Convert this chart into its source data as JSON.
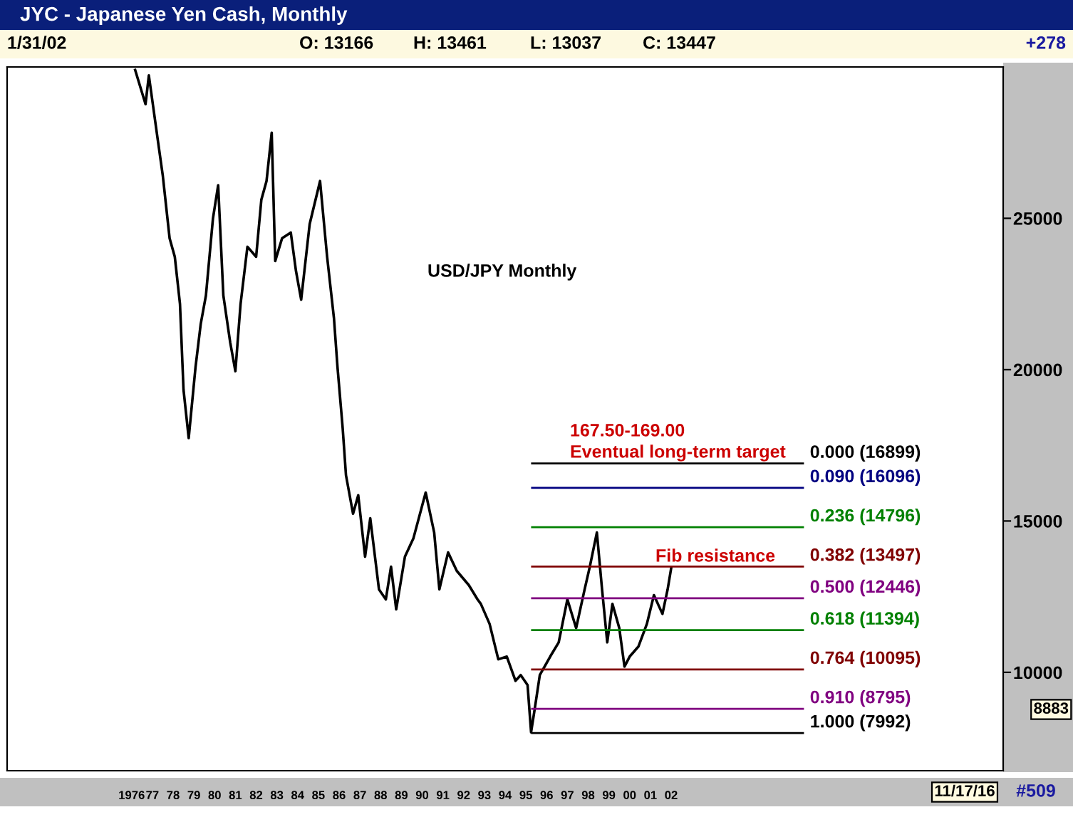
{
  "chart_data": {
    "type": "line",
    "title": "JYC - Japanese Yen Cash, Monthly",
    "x": [
      1976.17,
      1976.67,
      1976.83,
      1977.25,
      1977.5,
      1977.83,
      1978.08,
      1978.33,
      1978.5,
      1978.75,
      1979.08,
      1979.33,
      1979.58,
      1979.92,
      1980.17,
      1980.42,
      1980.75,
      1981.0,
      1981.25,
      1981.58,
      1982.0,
      1982.25,
      1982.5,
      1982.75,
      1982.92,
      1983.25,
      1983.67,
      1983.92,
      1984.17,
      1984.58,
      1985.08,
      1985.42,
      1985.75,
      1985.92,
      1986.17,
      1986.33,
      1986.67,
      1986.92,
      1987.25,
      1987.5,
      1987.92,
      1988.25,
      1988.5,
      1988.75,
      1989.17,
      1989.58,
      1990.17,
      1990.58,
      1990.83,
      1991.25,
      1991.67,
      1992.25,
      1992.67,
      1992.83,
      1993.25,
      1993.67,
      1994.08,
      1994.5,
      1994.75,
      1995.08,
      1995.25,
      1995.42,
      1995.67,
      1996.17,
      1996.58,
      1997.0,
      1997.42,
      1997.83,
      1998.08,
      1998.42,
      1998.67,
      1998.92,
      1999.17,
      1999.5,
      1999.75,
      2000.0,
      2000.42,
      2000.83,
      2001.17,
      2001.58,
      2001.83,
      2002.0
    ],
    "series": [
      {
        "color": "#000000",
        "values": [
          29900,
          28770,
          29720,
          27640,
          26420,
          24340,
          23730,
          22170,
          19340,
          17740,
          20090,
          21510,
          22450,
          25000,
          26090,
          22450,
          20900,
          19950,
          22170,
          24060,
          23730,
          25610,
          26230,
          27830,
          23590,
          24340,
          24530,
          23260,
          22310,
          24810,
          26230,
          23730,
          21700,
          20090,
          18070,
          16510,
          15240,
          15850,
          13820,
          15090,
          12740,
          12410,
          13490,
          12080,
          13820,
          14430,
          15940,
          14620,
          12740,
          13960,
          13350,
          12880,
          12410,
          12260,
          11600,
          10430,
          10520,
          9720,
          9910,
          9580,
          8020,
          8770,
          9910,
          10520,
          10990,
          12410,
          11460,
          12740,
          13490,
          14620,
          12740,
          10990,
          12260,
          11460,
          10190,
          10520,
          10850,
          11600,
          12550,
          11930,
          12740,
          13440
        ]
      }
    ],
    "xlim": [
      1970,
      2018
    ],
    "xticks": [
      {
        "value": 1976,
        "label": "1976"
      },
      {
        "value": 1977,
        "label": "77"
      },
      {
        "value": 1978,
        "label": "78"
      },
      {
        "value": 1979,
        "label": "79"
      },
      {
        "value": 1980,
        "label": "80"
      },
      {
        "value": 1981,
        "label": "81"
      },
      {
        "value": 1982,
        "label": "82"
      },
      {
        "value": 1983,
        "label": "83"
      },
      {
        "value": 1984,
        "label": "84"
      },
      {
        "value": 1985,
        "label": "85"
      },
      {
        "value": 1986,
        "label": "86"
      },
      {
        "value": 1987,
        "label": "87"
      },
      {
        "value": 1988,
        "label": "88"
      },
      {
        "value": 1989,
        "label": "89"
      },
      {
        "value": 1990,
        "label": "90"
      },
      {
        "value": 1991,
        "label": "91"
      },
      {
        "value": 1992,
        "label": "92"
      },
      {
        "value": 1993,
        "label": "93"
      },
      {
        "value": 1994,
        "label": "94"
      },
      {
        "value": 1995,
        "label": "95"
      },
      {
        "value": 1996,
        "label": "96"
      },
      {
        "value": 1997,
        "label": "97"
      },
      {
        "value": 1998,
        "label": "98"
      },
      {
        "value": 1999,
        "label": "99"
      },
      {
        "value": 2000,
        "label": "00"
      },
      {
        "value": 2001,
        "label": "01"
      },
      {
        "value": 2002,
        "label": "02"
      }
    ],
    "ylim": [
      6750,
      30000
    ],
    "yticks": [
      10000,
      15000,
      20000,
      25000
    ],
    "grid": false,
    "legend": false,
    "marker": "none",
    "line_style": "solid",
    "ref_lines": [
      {
        "axis": "y",
        "value": 16899,
        "label": "0.000 (16899)",
        "color": "#000000"
      },
      {
        "axis": "y",
        "value": 16096,
        "label": "0.090 (16096)",
        "color": "#000080"
      },
      {
        "axis": "y",
        "value": 14796,
        "label": "0.236 (14796)",
        "color": "#008000"
      },
      {
        "axis": "y",
        "value": 13497,
        "label": "0.382 (13497)",
        "color": "#800000"
      },
      {
        "axis": "y",
        "value": 12446,
        "label": "0.500 (12446)",
        "color": "#800080"
      },
      {
        "axis": "y",
        "value": 11394,
        "label": "0.618 (11394)",
        "color": "#008000"
      },
      {
        "axis": "y",
        "value": 10095,
        "label": "0.764 (10095)",
        "color": "#800000"
      },
      {
        "axis": "y",
        "value": 8795,
        "label": "0.910 (8795)",
        "color": "#800080"
      },
      {
        "axis": "y",
        "value": 7992,
        "label": "1.000 (7992)",
        "color": "#000000"
      }
    ],
    "annotations": [
      "USD/JPY Monthly",
      "167.50-169.00",
      "Eventual long-term target",
      "Fib resistance",
      "1/31/02",
      "O: 13166",
      "H: 13461",
      "L: 13037",
      "C: 13447",
      "+278",
      "8883",
      "11/17/16",
      "#509"
    ]
  }
}
